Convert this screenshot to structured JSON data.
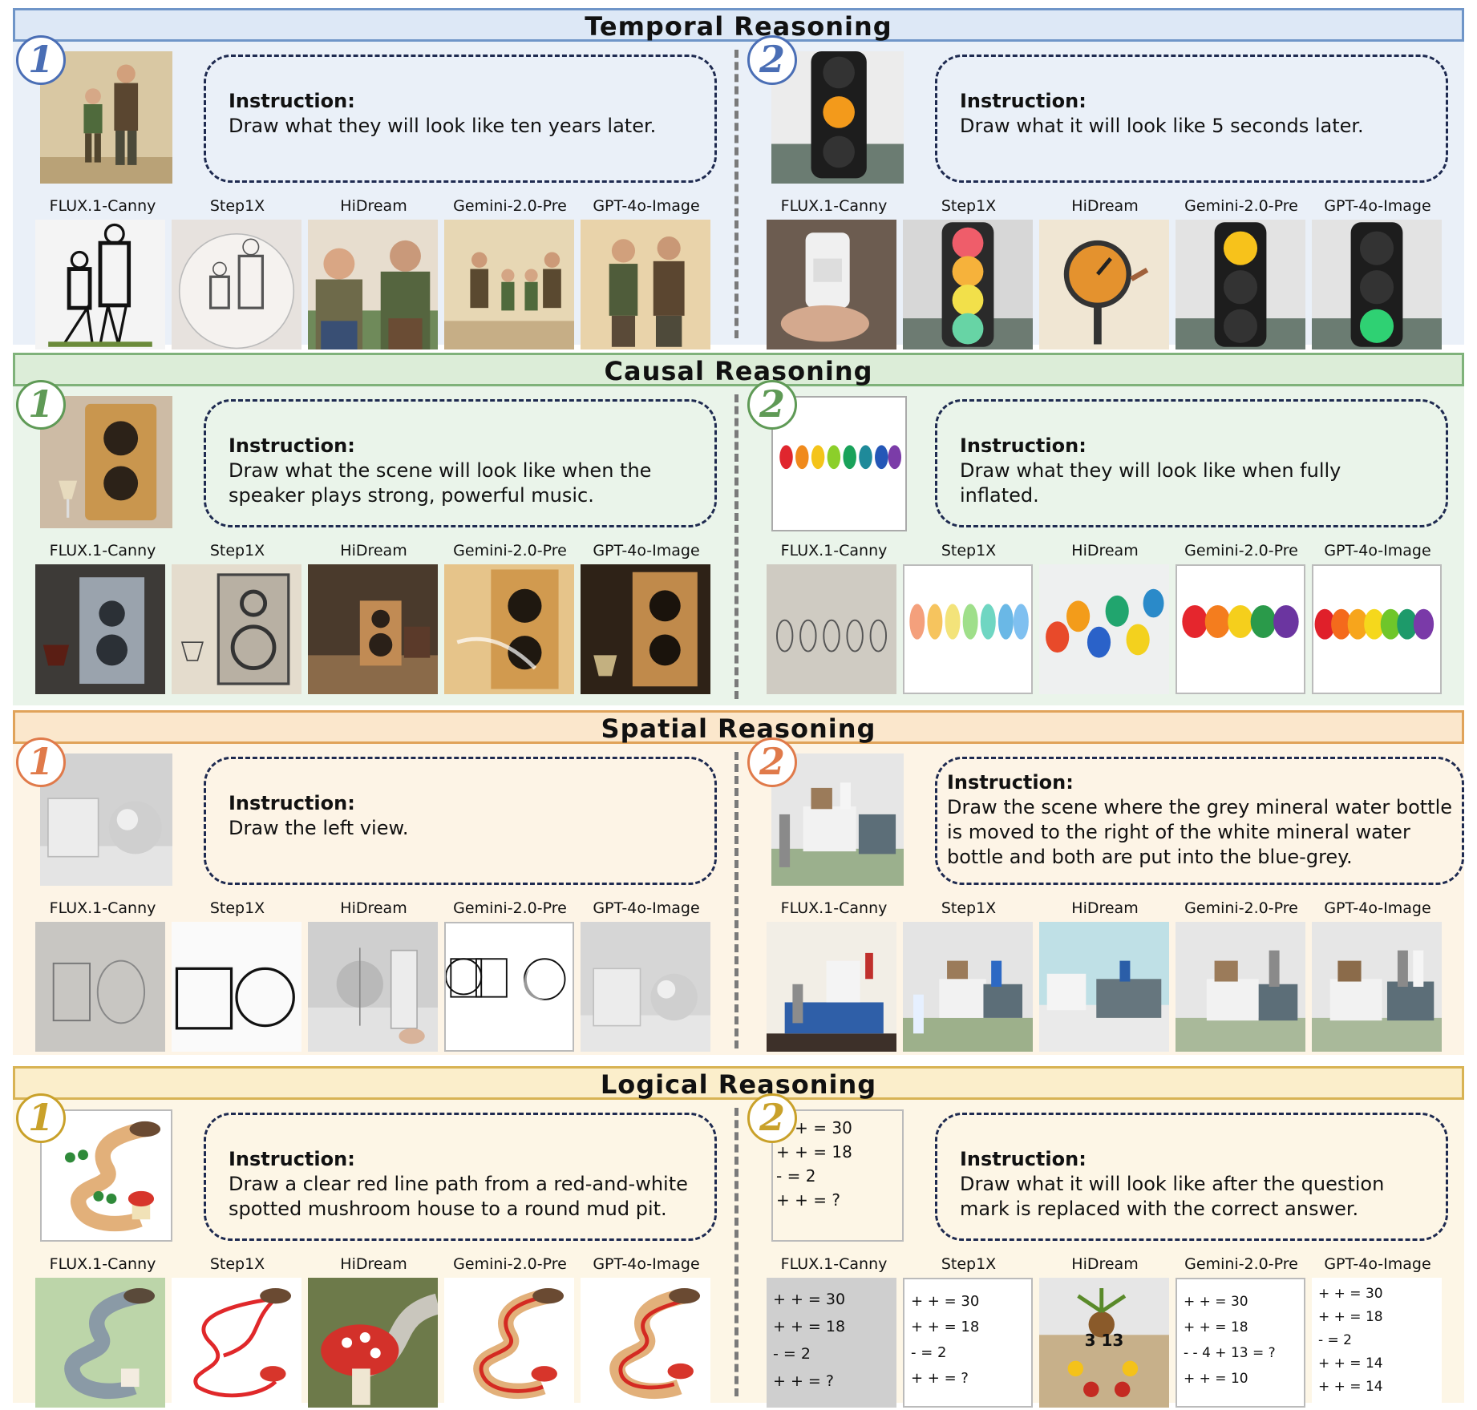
{
  "model_labels": [
    "FLUX.1-Canny",
    "Step1X",
    "HiDream",
    "Gemini-2.0-Pre",
    "GPT-4o-Image"
  ],
  "instruction_label": "Instruction:",
  "sections": {
    "temporal": {
      "title": "Temporal Reasoning",
      "color": "#4a6eb5",
      "case1": {
        "num": "1",
        "lines": [
          "Draw what they will look like ten years later."
        ]
      },
      "case2": {
        "num": "2",
        "lines": [
          "Draw what it will look like 5 seconds later."
        ]
      }
    },
    "causal": {
      "title": "Causal Reasoning",
      "color": "#5f9a56",
      "case1": {
        "num": "1",
        "lines": [
          "Draw what the scene will look like when the",
          "speaker plays strong, powerful music."
        ]
      },
      "case2": {
        "num": "2",
        "lines": [
          "Draw what they will look like when fully inflated."
        ]
      }
    },
    "spatial": {
      "title": "Spatial Reasoning",
      "color": "#e07a4a",
      "case1": {
        "num": "1",
        "lines": [
          "Draw the left view."
        ]
      },
      "case2": {
        "num": "2",
        "lines": [
          "Draw the scene where the grey mineral water bottle",
          "is moved to the right of the white mineral water",
          "bottle and both are put into the blue-grey."
        ]
      }
    },
    "logical": {
      "title": "Logical Reasoning",
      "color": "#c9a12a",
      "case1": {
        "num": "1",
        "lines": [
          "Draw a clear red line path from a red-and-white",
          "spotted mushroom house to a round mud pit."
        ]
      },
      "case2": {
        "num": "2",
        "lines": [
          "Draw what it will look like after the question",
          "mark is replaced with the correct answer."
        ]
      }
    }
  },
  "puzzle_input": [
    "+ + = 30",
    "+ + = 18",
    "- = 2",
    "+ + = ?"
  ],
  "flux_puzzle": [
    "+ + = 30",
    "+ + = 18",
    "- = 2",
    "+ + = ?"
  ],
  "step1x_puzzle": [
    "+ + = 30",
    "+ + = 18",
    "- = 2",
    "+ + = ?"
  ],
  "hidream_puzzle": [
    "3 13"
  ],
  "gemini_puzzle": [
    "+ + = 30",
    "+ + = 18",
    "- - 4 + 13 = ?",
    "+ + = 10"
  ],
  "gpt_puzzle": [
    "+ + = 30",
    "+ + = 18",
    "- = 2",
    "+ + = 14",
    "+ + = 14"
  ]
}
